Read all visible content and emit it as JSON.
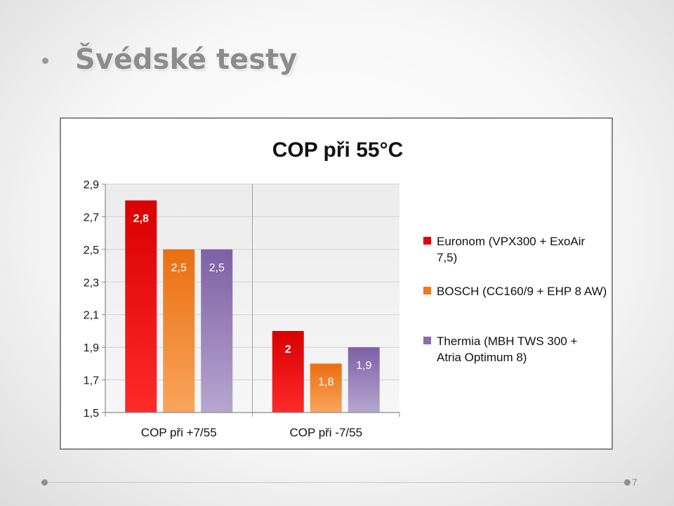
{
  "slide": {
    "title": "Švédské testy",
    "page_number": "7"
  },
  "chart_data": {
    "type": "bar",
    "title": "COP při 55°C",
    "categories": [
      "COP při +7/55",
      "COP při -7/55"
    ],
    "series": [
      {
        "name": "Euronom (VPX300 + ExoAir 7,5)",
        "values": [
          2.8,
          2.0
        ],
        "labels": [
          "2,8",
          "2"
        ],
        "color": "#e00000"
      },
      {
        "name": "BOSCH (CC160/9 + EHP 8 AW)",
        "values": [
          2.5,
          1.8
        ],
        "labels": [
          "2,5",
          "1,8"
        ],
        "color": "#f0781e"
      },
      {
        "name": "Thermia (MBH TWS 300  + Atria Optimum 8)",
        "values": [
          2.5,
          1.9
        ],
        "labels": [
          "2,5",
          "1,9"
        ],
        "color": "#8a6cab"
      }
    ],
    "ylim": [
      1.5,
      2.9
    ],
    "yticks": [
      "2,9",
      "2,7",
      "2,5",
      "2,3",
      "2,1",
      "1,9",
      "1,7",
      "1,5"
    ],
    "grid": true,
    "legend_position": "right",
    "xlabel": "",
    "ylabel": ""
  }
}
